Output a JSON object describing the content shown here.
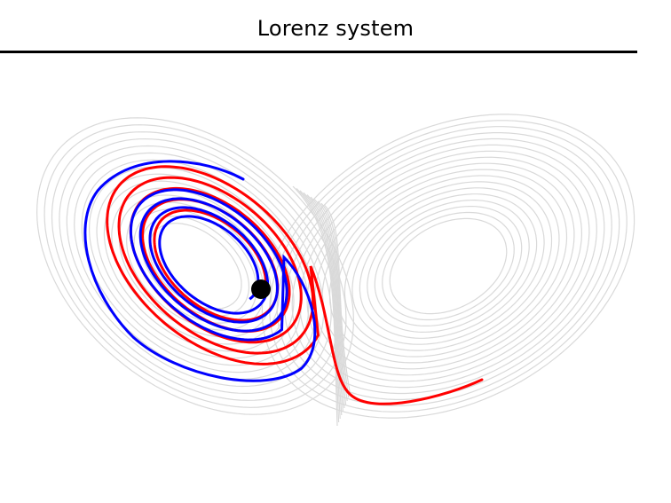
{
  "title": "Lorenz system",
  "colors": {
    "background_orbit": "#d9d9d9",
    "trajectory_a": "#ff0000",
    "trajectory_b": "#0000ff",
    "point": "#000000"
  },
  "chart_data": {
    "type": "diagram",
    "system": "lorenz",
    "trajectories": [
      {
        "color_key": "trajectory_a"
      },
      {
        "color_key": "trajectory_b"
      }
    ],
    "marker": {
      "shape": "circle",
      "color_key": "point"
    }
  }
}
